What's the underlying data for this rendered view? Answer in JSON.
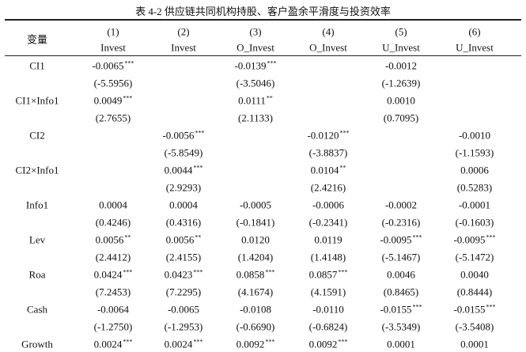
{
  "title": "表 4-2  供应链共同机构持股、客户盈余平滑度与投资效率",
  "header": {
    "variable": "变量",
    "numbers": [
      "(1)",
      "(2)",
      "(3)",
      "(4)",
      "(5)",
      "(6)"
    ],
    "dependents": [
      "Invest",
      "Invest",
      "O_Invest",
      "O_Invest",
      "U_Invest",
      "U_Invest"
    ]
  },
  "rows": [
    {
      "label": "CI1",
      "coef": [
        {
          "v": "-0.0065",
          "stars": "***"
        },
        null,
        {
          "v": "-0.0139",
          "stars": "***"
        },
        null,
        {
          "v": "-0.0012"
        },
        null
      ],
      "t": [
        "(-5.5956)",
        null,
        "(-3.5046)",
        null,
        "(-1.2639)",
        null
      ]
    },
    {
      "label": "CI1×Info1",
      "coef": [
        {
          "v": "0.0049",
          "stars": "***"
        },
        null,
        {
          "v": "0.0111",
          "stars": "**"
        },
        null,
        {
          "v": "0.0010"
        },
        null
      ],
      "t": [
        "(2.7655)",
        null,
        "(2.1133)",
        null,
        "(0.7095)",
        null
      ]
    },
    {
      "label": "CI2",
      "coef": [
        null,
        {
          "v": "-0.0056",
          "stars": "***"
        },
        null,
        {
          "v": "-0.0120",
          "stars": "***"
        },
        null,
        {
          "v": "-0.0010"
        }
      ],
      "t": [
        null,
        "(-5.8549)",
        null,
        "(-3.8837)",
        null,
        "(-1.1593)"
      ]
    },
    {
      "label": "CI2×Info1",
      "coef": [
        null,
        {
          "v": "0.0044",
          "stars": "***"
        },
        null,
        {
          "v": "0.0104",
          "stars": "**"
        },
        null,
        {
          "v": "0.0006"
        }
      ],
      "t": [
        null,
        "(2.9293)",
        null,
        "(2.4216)",
        null,
        "(0.5283)"
      ]
    },
    {
      "label": "Info1",
      "coef": [
        {
          "v": "0.0004"
        },
        {
          "v": "0.0004"
        },
        {
          "v": "-0.0005"
        },
        {
          "v": "-0.0006"
        },
        {
          "v": "-0.0002"
        },
        {
          "v": "-0.0001"
        }
      ],
      "t": [
        "(0.4246)",
        "(0.4316)",
        "(-0.1841)",
        "(-0.2341)",
        "(-0.2316)",
        "(-0.1603)"
      ]
    },
    {
      "label": "Lev",
      "coef": [
        {
          "v": "0.0056",
          "stars": "**"
        },
        {
          "v": "0.0056",
          "stars": "**"
        },
        {
          "v": "0.0120"
        },
        {
          "v": "0.0119"
        },
        {
          "v": "-0.0095",
          "stars": "***"
        },
        {
          "v": "-0.0095",
          "stars": "***"
        }
      ],
      "t": [
        "(2.4412)",
        "(2.4155)",
        "(1.4204)",
        "(1.4148)",
        "(-5.1467)",
        "(-5.1472)"
      ]
    },
    {
      "label": "Roa",
      "coef": [
        {
          "v": "0.0424",
          "stars": "***"
        },
        {
          "v": "0.0423",
          "stars": "***"
        },
        {
          "v": "0.0858",
          "stars": "***"
        },
        {
          "v": "0.0857",
          "stars": "***"
        },
        {
          "v": "0.0046"
        },
        {
          "v": "0.0040"
        }
      ],
      "t": [
        "(7.2453)",
        "(7.2295)",
        "(4.1674)",
        "(4.1591)",
        "(0.8465)",
        "(0.8444)"
      ]
    },
    {
      "label": "Cash",
      "coef": [
        {
          "v": "-0.0064"
        },
        {
          "v": "-0.0065"
        },
        {
          "v": "-0.0108"
        },
        {
          "v": "-0.0110"
        },
        {
          "v": "-0.0155",
          "stars": "***"
        },
        {
          "v": "-0.0155",
          "stars": "***"
        }
      ],
      "t": [
        "(-1.2750)",
        "(-1.2953)",
        "(-0.6690)",
        "(-0.6824)",
        "(-3.5349)",
        "(-3.5408)"
      ]
    },
    {
      "label": "Growth",
      "coef": [
        {
          "v": "0.0024",
          "stars": "***"
        },
        {
          "v": "0.0024",
          "stars": "***"
        },
        {
          "v": "0.0092",
          "stars": "***"
        },
        {
          "v": "0.0092",
          "stars": "***"
        },
        {
          "v": "0.0001"
        },
        {
          "v": "0.0001"
        }
      ]
    }
  ]
}
